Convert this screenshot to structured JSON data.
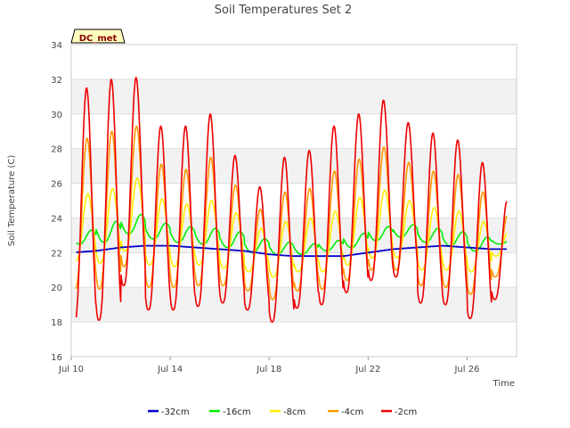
{
  "chart_data": {
    "type": "line",
    "title": "Soil Temperatures Set 2",
    "xlabel": "Time",
    "ylabel": "Soil Temperature (C)",
    "badge": "DC_met",
    "ylim": [
      16,
      34
    ],
    "yticks": [
      16,
      18,
      20,
      22,
      24,
      26,
      28,
      30,
      32,
      34
    ],
    "xlim": [
      "2024-07-10",
      "2024-07-28"
    ],
    "xticks": [
      {
        "date": "2024-07-10",
        "label": "Jul 10"
      },
      {
        "date": "2024-07-14",
        "label": "Jul 14"
      },
      {
        "date": "2024-07-18",
        "label": "Jul 18"
      },
      {
        "date": "2024-07-22",
        "label": "Jul 22"
      },
      {
        "date": "2024-07-26",
        "label": "Jul 26"
      }
    ],
    "grid": "horizontal bands",
    "legend_position": "bottom",
    "day_dates": [
      "2024-07-10",
      "2024-07-11",
      "2024-07-12",
      "2024-07-13",
      "2024-07-14",
      "2024-07-15",
      "2024-07-16",
      "2024-07-17",
      "2024-07-18",
      "2024-07-19",
      "2024-07-20",
      "2024-07-21",
      "2024-07-22",
      "2024-07-23",
      "2024-07-24",
      "2024-07-25",
      "2024-07-26",
      "2024-07-27"
    ],
    "series": [
      {
        "name": "-2cm",
        "color": "#ee0000",
        "daily_max": [
          31.5,
          32.0,
          32.1,
          29.3,
          29.3,
          30.0,
          27.6,
          25.8,
          27.5,
          27.9,
          29.3,
          30.0,
          30.8,
          29.5,
          28.9,
          28.5,
          27.2,
          25.0
        ],
        "daily_min": [
          17.9,
          18.1,
          20.1,
          18.7,
          18.7,
          18.9,
          19.1,
          18.7,
          18.0,
          18.8,
          19.0,
          19.7,
          20.4,
          20.6,
          19.1,
          19.0,
          18.2,
          19.3
        ]
      },
      {
        "name": "-4cm",
        "color": "#ff9900",
        "daily_max": [
          28.6,
          29.0,
          29.3,
          27.1,
          26.8,
          27.5,
          25.9,
          24.5,
          25.5,
          25.7,
          26.7,
          27.4,
          28.1,
          27.2,
          26.7,
          26.5,
          25.5,
          24.2
        ],
        "daily_min": [
          19.8,
          19.9,
          21.2,
          20.0,
          20.0,
          20.1,
          20.1,
          19.8,
          19.3,
          19.8,
          19.9,
          20.4,
          21.0,
          21.0,
          20.1,
          20.0,
          19.6,
          20.6
        ]
      },
      {
        "name": "-8cm",
        "color": "#ffee00",
        "daily_max": [
          25.4,
          25.7,
          26.3,
          25.1,
          24.8,
          25.0,
          24.3,
          23.4,
          23.8,
          24.0,
          24.4,
          25.2,
          25.6,
          25.0,
          24.6,
          24.4,
          23.8,
          23.2
        ],
        "daily_min": [
          21.5,
          21.4,
          22.1,
          21.3,
          21.2,
          21.3,
          21.1,
          20.9,
          20.6,
          20.9,
          20.9,
          21.3,
          21.7,
          21.7,
          21.0,
          21.0,
          20.9,
          21.8
        ]
      },
      {
        "name": "-16cm",
        "color": "#00ee00",
        "daily_max": [
          23.3,
          23.8,
          24.2,
          23.7,
          23.5,
          23.4,
          23.2,
          22.8,
          22.6,
          22.5,
          22.7,
          23.1,
          23.5,
          23.6,
          23.4,
          23.2,
          22.9,
          22.8
        ],
        "daily_min": [
          22.5,
          22.6,
          23.1,
          22.8,
          22.6,
          22.5,
          22.3,
          22.0,
          21.9,
          21.9,
          22.1,
          22.3,
          22.7,
          22.9,
          22.6,
          22.4,
          22.1,
          22.5
        ]
      },
      {
        "name": "-32cm",
        "color": "#0000cc",
        "daily_mean": [
          22.0,
          22.1,
          22.3,
          22.4,
          22.4,
          22.3,
          22.2,
          22.1,
          21.9,
          21.8,
          21.8,
          21.8,
          22.0,
          22.2,
          22.3,
          22.4,
          22.3,
          22.2
        ]
      }
    ],
    "legend_order": [
      "-32cm",
      "-16cm",
      "-8cm",
      "-4cm",
      "-2cm"
    ]
  }
}
